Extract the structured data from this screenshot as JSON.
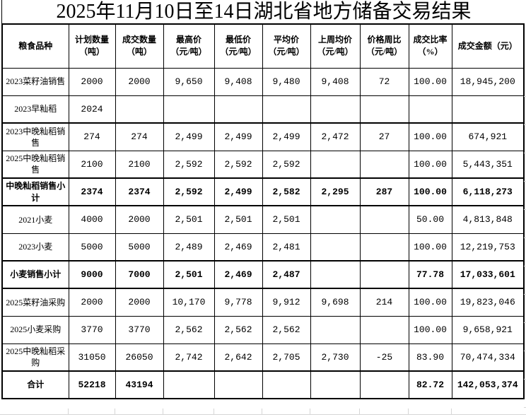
{
  "title": "2025年11月10日至14日湖北省地方储备交易结果",
  "table": {
    "headers": [
      "粮食品种",
      "计划数量\n（吨）",
      "成交数量\n（吨）",
      "最高价\n（元/吨）",
      "最低价\n（元/吨）",
      "平均价\n（元/吨）",
      "上周均价\n（元/吨）",
      "价格周比\n（元/吨）",
      "成交比率\n（%）",
      "成交金额（元）"
    ],
    "rows": [
      {
        "name": "2023菜籽油销售",
        "bold": false,
        "cells": [
          "2000",
          "2000",
          "9,650",
          "9,408",
          "9,480",
          "9,408",
          "72",
          "100.00",
          "18,945,200"
        ]
      },
      {
        "name": "2023早籼稻",
        "bold": false,
        "cells": [
          "2024",
          "",
          "",
          "",
          "",
          "",
          "",
          "",
          ""
        ]
      },
      {
        "name": "2023中晚籼稻销售",
        "bold": false,
        "cells": [
          "274",
          "274",
          "2,499",
          "2,499",
          "2,499",
          "2,472",
          "27",
          "100.00",
          "674,921"
        ]
      },
      {
        "name": "2025中晚籼稻销售",
        "bold": false,
        "cells": [
          "2100",
          "2100",
          "2,592",
          "2,592",
          "2,592",
          "",
          "",
          "100.00",
          "5,443,351"
        ]
      },
      {
        "name": "中晚籼稻销售小计",
        "bold": true,
        "cells": [
          "2374",
          "2374",
          "2,592",
          "2,499",
          "2,582",
          "2,295",
          "287",
          "100.00",
          "6,118,273"
        ]
      },
      {
        "name": "2021小麦",
        "bold": false,
        "cells": [
          "4000",
          "2000",
          "2,501",
          "2,501",
          "2,501",
          "",
          "",
          "50.00",
          "4,813,848"
        ]
      },
      {
        "name": "2023小麦",
        "bold": false,
        "cells": [
          "5000",
          "5000",
          "2,489",
          "2,469",
          "2,481",
          "",
          "",
          "100.00",
          "12,219,753"
        ]
      },
      {
        "name": "小麦销售小计",
        "bold": true,
        "cells": [
          "9000",
          "7000",
          "2,501",
          "2,469",
          "2,487",
          "",
          "",
          "77.78",
          "17,033,601"
        ]
      },
      {
        "name": "2025菜籽油采购",
        "bold": false,
        "cells": [
          "2000",
          "2000",
          "10,170",
          "9,778",
          "9,912",
          "9,698",
          "214",
          "100.00",
          "19,823,046"
        ]
      },
      {
        "name": "2025小麦采购",
        "bold": false,
        "cells": [
          "3770",
          "3770",
          "2,562",
          "2,562",
          "2,562",
          "",
          "",
          "100.00",
          "9,658,921"
        ]
      },
      {
        "name": "2025中晚籼稻采购",
        "bold": false,
        "cells": [
          "31050",
          "26050",
          "2,742",
          "2,642",
          "2,705",
          "2,730",
          "-25",
          "83.90",
          "70,474,334"
        ]
      },
      {
        "name": "合计",
        "bold": true,
        "cells": [
          "52218",
          "43194",
          "",
          "",
          "",
          "",
          "",
          "82.72",
          "142,053,374"
        ]
      }
    ]
  }
}
